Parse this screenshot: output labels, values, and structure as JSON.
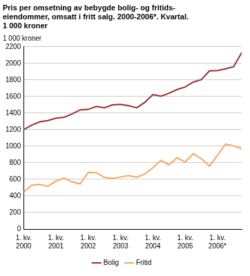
{
  "chart_data": {
    "type": "line",
    "title": [
      "Pris per omsetning av bebygde bolig- og fritids-",
      "eiendommer, omsatt i fritt salg. 2000-2006*. Kvartal.",
      "1 000 kroner"
    ],
    "y_label": "1 000 kroner",
    "categories": [
      "1. kv.\n2000",
      null,
      null,
      null,
      "1. kv.\n2001",
      null,
      null,
      null,
      "1. kv.\n2002",
      null,
      null,
      null,
      "1. kv.\n2003",
      null,
      null,
      null,
      "1. kv.\n2004",
      null,
      null,
      null,
      "1. kv.\n2005",
      null,
      null,
      null,
      "1. kv.\n2006*",
      null,
      null,
      null
    ],
    "series": [
      {
        "name": "Bolig",
        "color": "#9b2b2e",
        "values": [
          1200,
          1255,
          1295,
          1310,
          1340,
          1350,
          1390,
          1440,
          1445,
          1480,
          1465,
          1500,
          1505,
          1490,
          1465,
          1530,
          1625,
          1605,
          1640,
          1685,
          1715,
          1775,
          1805,
          1910,
          1915,
          1935,
          1960,
          2130
        ]
      },
      {
        "name": "Fritid",
        "color": "#f4a65e",
        "values": [
          445,
          530,
          540,
          515,
          580,
          615,
          570,
          545,
          685,
          680,
          625,
          610,
          630,
          645,
          625,
          665,
          740,
          830,
          775,
          860,
          810,
          910,
          850,
          760,
          890,
          1025,
          1005,
          970
        ]
      }
    ],
    "ylim": [
      0,
      2200
    ],
    "yticks": [
      0,
      200,
      400,
      600,
      800,
      1000,
      1200,
      1400,
      1600,
      1800,
      2000,
      2200
    ],
    "grid": true,
    "legend": "bottom"
  }
}
